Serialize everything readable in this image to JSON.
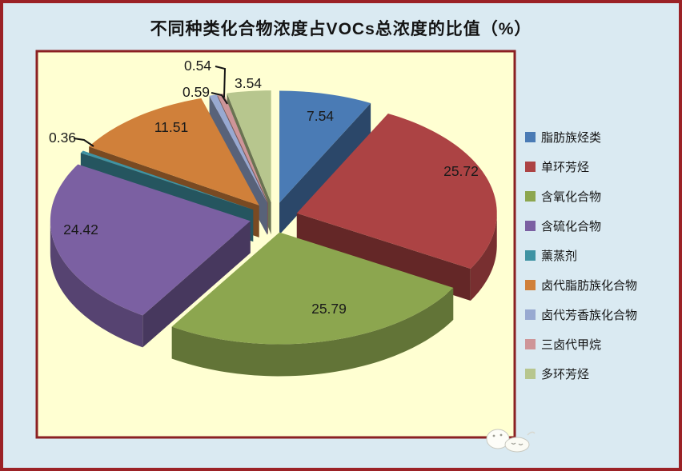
{
  "chart_data": {
    "type": "pie",
    "style": "3d-exploded",
    "title": "不同种类化合物浓度占VOCs总浓度的比值（%）",
    "unit": "%",
    "legend_position": "right",
    "labels_show": "value",
    "slices": [
      {
        "label": "脂肪族烃类",
        "value": 7.54,
        "color": "#4A7BB5"
      },
      {
        "label": "单环芳烃",
        "value": 25.72,
        "color": "#AC4344"
      },
      {
        "label": "含氧化合物",
        "value": 25.79,
        "color": "#8CA64F"
      },
      {
        "label": "含硫化合物",
        "value": 24.42,
        "color": "#7B60A2"
      },
      {
        "label": "薰蒸剂",
        "value": 0.36,
        "color": "#3F93A3"
      },
      {
        "label": "卤代脂肪族化合物",
        "value": 11.51,
        "color": "#D0803A"
      },
      {
        "label": "卤代芳香族化合物",
        "value": 0.59,
        "color": "#98A9D1"
      },
      {
        "label": "三卤代甲烷",
        "value": 0.54,
        "color": "#CE9598"
      },
      {
        "label": "多环芳烃",
        "value": 3.54,
        "color": "#B7C68E"
      }
    ]
  },
  "colors": {
    "page_bg": "#DAEAF2",
    "outer_frame": "#9B2226",
    "plot_bg": "#FFFFD2",
    "plot_border": "#8B2022",
    "label_text": "#1A1A1A"
  },
  "watermark": {
    "name": "white-sticker-faces"
  }
}
